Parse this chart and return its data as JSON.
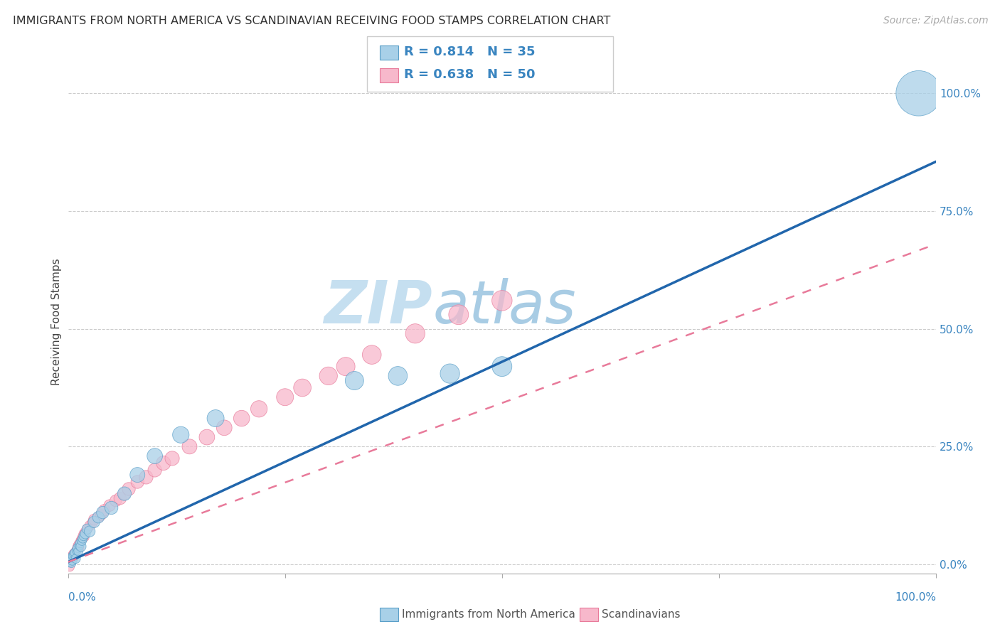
{
  "title": "IMMIGRANTS FROM NORTH AMERICA VS SCANDINAVIAN RECEIVING FOOD STAMPS CORRELATION CHART",
  "source": "Source: ZipAtlas.com",
  "ylabel": "Receiving Food Stamps",
  "r1": 0.814,
  "n1": 35,
  "r2": 0.638,
  "n2": 50,
  "color_blue": "#a8d0e8",
  "color_pink": "#f7b8cb",
  "color_blue_edge": "#5a9fc8",
  "color_pink_edge": "#e87a9a",
  "color_blue_line": "#2166ac",
  "color_pink_line": "#e87a9a",
  "color_blue_text": "#3a85c0",
  "legend_label1": "Immigrants from North America",
  "legend_label2": "Scandinavians",
  "blue_x": [
    0.002,
    0.003,
    0.004,
    0.005,
    0.005,
    0.006,
    0.007,
    0.008,
    0.009,
    0.01,
    0.011,
    0.012,
    0.013,
    0.014,
    0.015,
    0.016,
    0.017,
    0.018,
    0.02,
    0.022,
    0.025,
    0.03,
    0.035,
    0.04,
    0.05,
    0.065,
    0.08,
    0.1,
    0.13,
    0.17,
    0.33,
    0.38,
    0.44,
    0.5,
    0.98
  ],
  "blue_y": [
    0.005,
    0.01,
    0.003,
    0.015,
    0.008,
    0.018,
    0.022,
    0.025,
    0.012,
    0.03,
    0.035,
    0.028,
    0.04,
    0.045,
    0.038,
    0.05,
    0.055,
    0.06,
    0.065,
    0.075,
    0.07,
    0.09,
    0.1,
    0.11,
    0.12,
    0.15,
    0.19,
    0.23,
    0.275,
    0.31,
    0.39,
    0.4,
    0.405,
    0.42,
    1.0
  ],
  "blue_s": [
    30,
    30,
    25,
    30,
    25,
    25,
    25,
    25,
    25,
    25,
    25,
    25,
    25,
    25,
    30,
    25,
    25,
    25,
    30,
    30,
    35,
    40,
    40,
    45,
    50,
    55,
    65,
    70,
    80,
    85,
    100,
    105,
    110,
    115,
    600
  ],
  "pink_x": [
    0.002,
    0.003,
    0.004,
    0.005,
    0.005,
    0.006,
    0.007,
    0.008,
    0.009,
    0.01,
    0.011,
    0.012,
    0.013,
    0.014,
    0.015,
    0.016,
    0.017,
    0.018,
    0.019,
    0.02,
    0.022,
    0.025,
    0.028,
    0.03,
    0.035,
    0.038,
    0.042,
    0.048,
    0.055,
    0.06,
    0.065,
    0.07,
    0.08,
    0.09,
    0.1,
    0.11,
    0.12,
    0.14,
    0.16,
    0.18,
    0.2,
    0.22,
    0.25,
    0.27,
    0.3,
    0.32,
    0.35,
    0.4,
    0.45,
    0.5
  ],
  "pink_y": [
    -0.005,
    0.005,
    0.008,
    0.012,
    0.018,
    0.022,
    0.015,
    0.025,
    0.028,
    0.032,
    0.038,
    0.042,
    0.035,
    0.048,
    0.052,
    0.055,
    0.06,
    0.065,
    0.058,
    0.07,
    0.075,
    0.082,
    0.088,
    0.095,
    0.1,
    0.105,
    0.115,
    0.125,
    0.135,
    0.14,
    0.15,
    0.16,
    0.175,
    0.185,
    0.2,
    0.215,
    0.225,
    0.25,
    0.27,
    0.29,
    0.31,
    0.33,
    0.355,
    0.375,
    0.4,
    0.42,
    0.445,
    0.49,
    0.53,
    0.56
  ],
  "pink_s": [
    25,
    25,
    25,
    25,
    25,
    25,
    25,
    25,
    25,
    25,
    25,
    25,
    25,
    25,
    25,
    25,
    25,
    25,
    25,
    25,
    30,
    30,
    30,
    35,
    35,
    35,
    40,
    40,
    40,
    45,
    45,
    50,
    50,
    55,
    55,
    60,
    60,
    65,
    70,
    70,
    75,
    80,
    85,
    90,
    95,
    100,
    105,
    110,
    115,
    120
  ],
  "blue_line_x0": 0.0,
  "blue_line_y0": 0.005,
  "blue_line_x1": 1.0,
  "blue_line_y1": 0.855,
  "pink_line_x0": 0.0,
  "pink_line_y0": 0.005,
  "pink_line_x1": 1.0,
  "pink_line_y1": 0.68,
  "xlim": [
    0.0,
    1.0
  ],
  "ylim": [
    -0.02,
    1.05
  ],
  "grid_yticks": [
    0.0,
    0.25,
    0.5,
    0.75,
    1.0
  ],
  "watermark_zip_color": "#c5dff0",
  "watermark_atlas_color": "#a8cce4"
}
